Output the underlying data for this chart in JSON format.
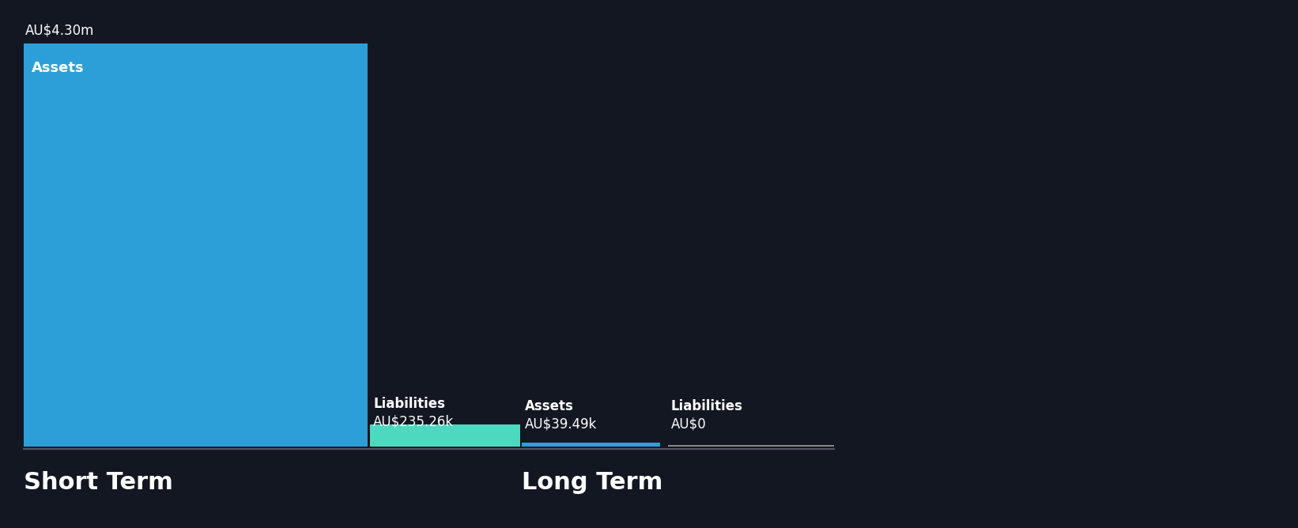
{
  "background_color": "#131722",
  "short_term": {
    "assets_value": 4300000,
    "assets_label": "Assets",
    "assets_display": "AU$4.30m",
    "assets_color": "#2d9fd8",
    "liabilities_value": 235260,
    "liabilities_label": "Liabilities",
    "liabilities_display": "AU$235.26k",
    "liabilities_color": "#4dd9c0"
  },
  "long_term": {
    "assets_value": 39490,
    "assets_label": "Assets",
    "assets_display": "AU$39.49k",
    "assets_color": "#2d9fd8",
    "liabilities_value": 0,
    "liabilities_label": "Liabilities",
    "liabilities_display": "AU$0",
    "liabilities_color": "#888888"
  },
  "section_labels": [
    "Short Term",
    "Long Term"
  ],
  "text_color": "#ffffff",
  "label_fontsize": 12,
  "value_fontsize": 12,
  "section_fontsize": 22,
  "separator_color": "#555566"
}
